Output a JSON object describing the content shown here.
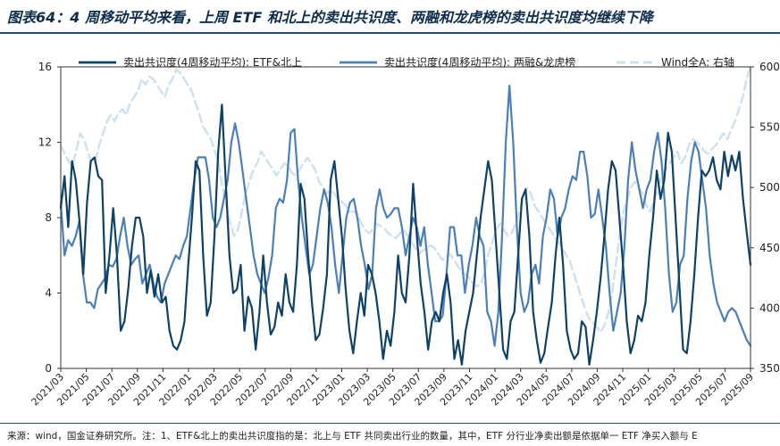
{
  "title": "图表64：4 周移动平均来看，上周 ETF 和北上的卖出共识度、两融和龙虎榜的卖出共识度均继续下降",
  "note": "来源：wind，国金证券研究所。注：1、ETF&北上的卖出共识度指的是：北上与 ETF 共同卖出行业的数量，其中，ETF 分行业净卖出额是依据单一 ETF 净买入额与 E",
  "colors": {
    "etf": "#0e4166",
    "margin": "#4a7fba",
    "wind": "#cfe0ee",
    "axis": "#333333"
  },
  "chart_data": {
    "type": "line",
    "x_start": "2021-03",
    "x_end": "2025-09",
    "x_ticks": [
      "2021/03",
      "2021/05",
      "2021/07",
      "2021/09",
      "2021/11",
      "2022/01",
      "2022/03",
      "2022/05",
      "2022/07",
      "2022/09",
      "2022/11",
      "2023/01",
      "2023/03",
      "2023/05",
      "2023/07",
      "2023/09",
      "2023/11",
      "2024/01",
      "2024/03",
      "2024/05",
      "2024/07",
      "2024/09",
      "2024/11",
      "2025/01",
      "2025/03",
      "2025/05",
      "2025/07",
      "2025/09"
    ],
    "y_left": {
      "min": 0,
      "max": 16,
      "ticks": [
        0,
        4,
        8,
        12,
        16
      ]
    },
    "y_right": {
      "min": 350,
      "max": 600,
      "ticks": [
        350,
        400,
        450,
        500,
        550,
        600
      ]
    },
    "legend_position": "top",
    "series": [
      {
        "name": "卖出共识度(4周移动平均): ETF&北上",
        "axis": "left",
        "style": "solid-dark",
        "values": [
          8.5,
          10.2,
          7.5,
          11.0,
          10.0,
          7.8,
          5.0,
          8.8,
          11.0,
          11.2,
          10.2,
          10.0,
          4.0,
          6.0,
          8.5,
          6.0,
          2.0,
          2.5,
          4.2,
          6.5,
          8.0,
          8.0,
          7.0,
          4.0,
          5.2,
          3.8,
          5.0,
          3.5,
          3.8,
          2.0,
          1.2,
          1.0,
          1.5,
          2.5,
          5.5,
          8.0,
          11.0,
          10.5,
          6.0,
          2.8,
          3.5,
          7.0,
          11.5,
          14.0,
          10.0,
          6.0,
          4.0,
          4.2,
          5.5,
          2.0,
          3.8,
          3.2,
          1.0,
          3.0,
          6.0,
          3.5,
          1.8,
          2.2,
          3.5,
          2.8,
          5.0,
          3.5,
          3.0,
          5.5,
          9.8,
          9.0,
          6.0,
          3.5,
          1.5,
          1.8,
          3.2,
          5.0,
          10.0,
          11.0,
          9.0,
          7.0,
          4.2,
          2.0,
          0.8,
          2.5,
          4.0,
          2.8,
          5.5,
          5.0,
          4.0,
          2.5,
          0.5,
          2.0,
          1.2,
          3.0,
          6.0,
          4.0,
          3.5,
          6.0,
          9.8,
          7.0,
          4.5,
          3.0,
          1.0,
          2.5,
          3.0,
          2.5,
          4.0,
          5.0,
          3.5,
          0.5,
          1.5,
          0.2,
          2.0,
          3.0,
          4.0,
          6.0,
          8.0,
          9.5,
          11.0,
          10.0,
          7.0,
          4.0,
          1.0,
          0.5,
          2.5,
          3.0,
          6.0,
          9.0,
          9.5,
          7.0,
          3.0,
          1.5,
          0.3,
          0.8,
          2.2,
          3.5,
          6.0,
          8.0,
          5.5,
          2.0,
          1.0,
          0.5,
          0.8,
          2.5,
          2.2,
          0.2,
          1.5,
          3.0,
          4.8,
          7.0,
          9.5,
          11.0,
          10.5,
          8.0,
          5.5,
          2.5,
          0.8,
          1.5,
          2.8,
          2.5,
          3.5,
          6.0,
          8.0,
          10.5,
          9.0,
          10.0,
          12.5,
          11.5,
          8.0,
          4.5,
          1.0,
          0.8,
          2.5,
          5.0,
          8.0,
          10.5,
          10.2,
          10.5,
          11.2,
          10.0,
          9.5,
          11.5,
          10.2,
          11.3,
          10.5,
          11.5,
          9.0,
          7.2,
          5.5
        ]
      },
      {
        "name": "卖出共识度(4周移动平均): 两融&龙虎榜",
        "axis": "left",
        "style": "solid-mid",
        "values": [
          8.8,
          6.0,
          6.8,
          6.5,
          7.0,
          7.8,
          5.0,
          3.5,
          3.5,
          3.2,
          4.2,
          4.5,
          4.8,
          5.5,
          5.4,
          5.8,
          7.0,
          8.0,
          6.5,
          5.5,
          5.8,
          6.0,
          4.5,
          5.0,
          5.5,
          4.5,
          3.8,
          3.5,
          4.5,
          5.0,
          5.5,
          6.0,
          5.8,
          6.5,
          7.0,
          8.5,
          10.0,
          11.2,
          11.2,
          11.2,
          10.0,
          8.0,
          7.5,
          8.0,
          9.0,
          10.0,
          12.0,
          13.0,
          12.0,
          10.5,
          9.0,
          7.5,
          6.0,
          5.0,
          4.5,
          4.0,
          4.8,
          6.0,
          8.5,
          9.0,
          8.8,
          10.0,
          12.5,
          12.7,
          10.0,
          8.0,
          6.5,
          5.0,
          5.5,
          7.0,
          8.5,
          9.5,
          8.8,
          7.5,
          5.5,
          4.0,
          6.0,
          8.0,
          8.8,
          9.0,
          8.0,
          6.5,
          5.5,
          4.2,
          5.0,
          8.5,
          9.5,
          8.5,
          8.0,
          8.2,
          8.5,
          8.5,
          7.5,
          6.0,
          7.0,
          8.0,
          7.5,
          6.5,
          7.5,
          5.5,
          4.0,
          2.5,
          2.5,
          2.8,
          5.0,
          7.5,
          7.5,
          6.0,
          6.0,
          4.0,
          5.5,
          6.5,
          8.0,
          7.0,
          6.5,
          3.0,
          2.5,
          1.2,
          3.0,
          7.0,
          12.0,
          15.0,
          12.0,
          7.5,
          4.0,
          3.0,
          3.5,
          5.0,
          5.5,
          4.5,
          7.0,
          8.0,
          9.5,
          9.0,
          7.0,
          8.0,
          8.5,
          9.5,
          10.2,
          10.0,
          11.5,
          11.5,
          10.2,
          8.0,
          8.2,
          9.5,
          8.0,
          6.5,
          4.0,
          2.0,
          3.0,
          4.0,
          6.5,
          10.0,
          12.0,
          10.5,
          9.5,
          8.5,
          9.5,
          10.0,
          11.5,
          12.5,
          11.0,
          8.5,
          5.0,
          3.0,
          3.5,
          5.5,
          6.0,
          9.0,
          11.0,
          12.0,
          11.5,
          10.0,
          8.5,
          6.0,
          4.5,
          3.5,
          3.0,
          2.5,
          3.0,
          3.2,
          3.0,
          2.5,
          2.0,
          1.5,
          1.2
        ]
      },
      {
        "name": "Wind全A: 右轴",
        "axis": "right",
        "style": "dashed-light",
        "values": [
          535,
          528,
          522,
          518,
          530,
          545,
          540,
          530,
          520,
          522,
          535,
          545,
          555,
          560,
          555,
          562,
          565,
          560,
          570,
          575,
          580,
          590,
          585,
          592,
          590,
          585,
          580,
          575,
          585,
          590,
          598,
          595,
          590,
          585,
          580,
          570,
          560,
          550,
          545,
          540,
          530,
          520,
          500,
          485,
          470,
          460,
          465,
          480,
          495,
          505,
          515,
          520,
          530,
          525,
          520,
          515,
          510,
          515,
          520,
          518,
          512,
          510,
          515,
          520,
          525,
          520,
          515,
          505,
          500,
          495,
          498,
          495,
          490,
          488,
          485,
          480,
          480,
          478,
          470,
          465,
          462,
          465,
          470,
          468,
          466,
          462,
          460,
          458,
          462,
          465,
          460,
          455,
          450,
          445,
          448,
          450,
          452,
          450,
          445,
          440,
          442,
          445,
          440,
          435,
          430,
          428,
          425,
          420,
          418,
          420,
          430,
          445,
          455,
          465,
          470,
          465,
          460,
          462,
          470,
          480,
          490,
          500,
          495,
          485,
          480,
          475,
          470,
          465,
          460,
          455,
          450,
          445,
          440,
          430,
          420,
          410,
          400,
          392,
          388,
          385,
          380,
          385,
          395,
          410,
          435,
          460,
          480,
          490,
          500,
          505,
          500,
          495,
          485,
          480,
          490,
          500,
          510,
          515,
          520,
          525,
          530,
          520,
          525,
          535,
          540,
          538,
          535,
          530,
          528,
          532,
          535,
          540,
          545,
          540,
          548,
          555,
          565,
          575,
          590,
          600
        ]
      }
    ]
  }
}
